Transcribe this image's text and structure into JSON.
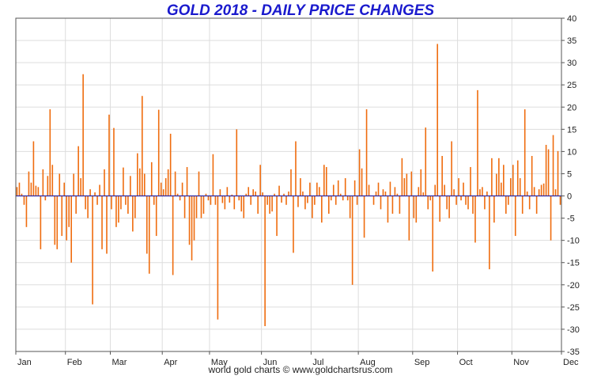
{
  "title": "GOLD 2018 - DAILY PRICE CHANGES",
  "footer": "world gold charts © www.goldchartsrus.com",
  "colors": {
    "bars": "#ef6c0e",
    "zero_line": "#2a2aa8",
    "grid": "#dddddd",
    "title": "#1a1acd"
  },
  "chart_data": {
    "type": "bar",
    "title": "GOLD 2018 - DAILY PRICE CHANGES",
    "xlabel": "",
    "ylabel": "",
    "ylim": [
      -35,
      40
    ],
    "yticks": [
      -35,
      -30,
      -25,
      -20,
      -15,
      -10,
      -5,
      0,
      5,
      10,
      15,
      20,
      25,
      30,
      35,
      40
    ],
    "grid": true,
    "y_axis_side": "right",
    "month_labels": [
      "Jan",
      "Feb",
      "Mar",
      "Apr",
      "May",
      "Jun",
      "Jul",
      "Aug",
      "Sep",
      "Oct",
      "Nov",
      "Dec"
    ],
    "month_start_index": [
      0,
      21,
      40,
      62,
      82,
      104,
      125,
      145,
      168,
      187,
      210,
      231
    ],
    "series": [
      {
        "values": [
          2,
          3,
          0.5,
          -2,
          -7,
          5.5,
          3,
          12.3,
          2.3,
          2,
          -12,
          6,
          -1,
          4.5,
          19.5,
          7,
          -11,
          -12,
          5,
          -9,
          3,
          -10,
          -7,
          -15,
          5,
          -4,
          11.2,
          4,
          27.4,
          -3,
          -5,
          1.5,
          -24.4,
          0.8,
          -2,
          2.5,
          -12,
          6,
          -13,
          18.3,
          -3,
          15.3,
          -7,
          -6,
          -3,
          6.4,
          -2,
          -4,
          4.5,
          -8,
          -5,
          9.6,
          6.2,
          22.5,
          5,
          -13,
          -17.5,
          7.6,
          -2,
          -9,
          19.4,
          3,
          1.5,
          4,
          6,
          14,
          -17.8,
          5.5,
          0.5,
          -1,
          3,
          -5,
          6.5,
          -11,
          -14.5,
          -10,
          -5,
          5.5,
          -5,
          -4,
          0.5,
          -1,
          -2,
          9.4,
          -2,
          -27.8,
          1.5,
          -1.6,
          -3,
          2,
          -1.5,
          0.3,
          -3,
          15,
          -1,
          -3.5,
          -5,
          0.5,
          2,
          -2,
          1.5,
          1,
          -4,
          7,
          0.8,
          -29.3,
          -2,
          -4,
          -3.5,
          0.5,
          -9,
          2.3,
          -1.5,
          0.5,
          -2,
          1,
          6,
          -12.8,
          12.3,
          -2.5,
          4,
          1,
          -3,
          -1.6,
          3,
          -5,
          -2,
          3,
          2,
          -6,
          7,
          6.5,
          -4,
          -1,
          2.5,
          -2,
          3.5,
          0.5,
          -1,
          4,
          -1,
          -5,
          -20,
          3.5,
          -2,
          10.5,
          6.2,
          -9.4,
          19.5,
          2.5,
          0,
          -2,
          1,
          3,
          -3,
          1.5,
          1,
          -6,
          3.2,
          -4,
          2,
          0.5,
          -4,
          8.5,
          4,
          5,
          -10,
          5.5,
          -5,
          -6,
          2,
          6,
          0.8,
          15.4,
          -3,
          -1,
          -17,
          2.5,
          34.2,
          -5.8,
          9,
          2.5,
          -3,
          -5,
          12.3,
          1.5,
          -2,
          4,
          -1,
          3,
          -2,
          -3,
          6.5,
          -4,
          -10.5,
          23.8,
          1.5,
          2,
          -3,
          1,
          -16.5,
          8.5,
          -6,
          5,
          8.5,
          3,
          7,
          -4,
          -2,
          4,
          7,
          -9,
          8,
          4,
          -4,
          19.5,
          1,
          -3,
          9,
          2,
          -4,
          1.5,
          2.5,
          2.8,
          11.5,
          10.5,
          -10,
          13.7,
          1.5,
          10.1,
          -2
        ]
      }
    ]
  }
}
